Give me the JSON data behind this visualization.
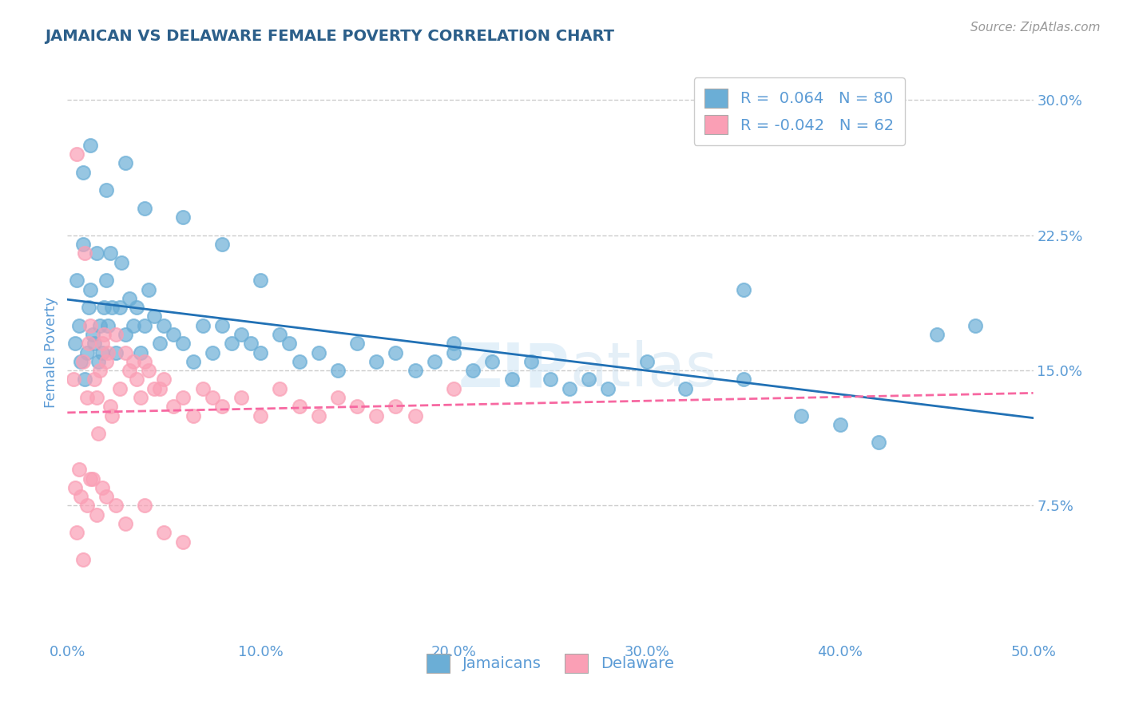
{
  "title": "JAMAICAN VS DELAWARE FEMALE POVERTY CORRELATION CHART",
  "source": "Source: ZipAtlas.com",
  "ylabel": "Female Poverty",
  "xlim": [
    0.0,
    0.5
  ],
  "ylim": [
    0.0,
    0.32
  ],
  "yticks": [
    0.075,
    0.15,
    0.225,
    0.3
  ],
  "ytick_labels": [
    "7.5%",
    "15.0%",
    "22.5%",
    "30.0%"
  ],
  "xticks": [
    0.0,
    0.1,
    0.2,
    0.3,
    0.4,
    0.5
  ],
  "xtick_labels": [
    "0.0%",
    "10.0%",
    "20.0%",
    "30.0%",
    "40.0%",
    "50.0%"
  ],
  "legend_labels": [
    "Jamaicans",
    "Delaware"
  ],
  "r_blue": 0.064,
  "n_blue": 80,
  "r_pink": -0.042,
  "n_pink": 62,
  "blue_color": "#6baed6",
  "pink_color": "#fa9fb5",
  "blue_line_color": "#2171b5",
  "pink_line_color": "#f768a1",
  "title_color": "#2c5f8a",
  "axis_color": "#5b9bd5",
  "background_color": "#ffffff",
  "blue_scatter_x": [
    0.004,
    0.005,
    0.006,
    0.007,
    0.008,
    0.009,
    0.01,
    0.011,
    0.012,
    0.013,
    0.014,
    0.015,
    0.016,
    0.017,
    0.018,
    0.019,
    0.02,
    0.021,
    0.022,
    0.023,
    0.025,
    0.027,
    0.028,
    0.03,
    0.032,
    0.034,
    0.036,
    0.038,
    0.04,
    0.042,
    0.045,
    0.048,
    0.05,
    0.055,
    0.06,
    0.065,
    0.07,
    0.075,
    0.08,
    0.085,
    0.09,
    0.095,
    0.1,
    0.11,
    0.115,
    0.12,
    0.13,
    0.14,
    0.15,
    0.16,
    0.17,
    0.18,
    0.19,
    0.2,
    0.21,
    0.22,
    0.23,
    0.24,
    0.25,
    0.26,
    0.27,
    0.28,
    0.3,
    0.32,
    0.35,
    0.38,
    0.4,
    0.42,
    0.45,
    0.47,
    0.008,
    0.012,
    0.02,
    0.03,
    0.04,
    0.06,
    0.08,
    0.1,
    0.2,
    0.35
  ],
  "blue_scatter_y": [
    0.165,
    0.2,
    0.175,
    0.155,
    0.22,
    0.145,
    0.16,
    0.185,
    0.195,
    0.17,
    0.165,
    0.215,
    0.155,
    0.175,
    0.16,
    0.185,
    0.2,
    0.175,
    0.215,
    0.185,
    0.16,
    0.185,
    0.21,
    0.17,
    0.19,
    0.175,
    0.185,
    0.16,
    0.175,
    0.195,
    0.18,
    0.165,
    0.175,
    0.17,
    0.165,
    0.155,
    0.175,
    0.16,
    0.175,
    0.165,
    0.17,
    0.165,
    0.16,
    0.17,
    0.165,
    0.155,
    0.16,
    0.15,
    0.165,
    0.155,
    0.16,
    0.15,
    0.155,
    0.16,
    0.15,
    0.155,
    0.145,
    0.155,
    0.145,
    0.14,
    0.145,
    0.14,
    0.155,
    0.14,
    0.145,
    0.125,
    0.12,
    0.11,
    0.17,
    0.175,
    0.26,
    0.275,
    0.25,
    0.265,
    0.24,
    0.235,
    0.22,
    0.2,
    0.165,
    0.195
  ],
  "pink_scatter_x": [
    0.003,
    0.004,
    0.005,
    0.006,
    0.007,
    0.008,
    0.009,
    0.01,
    0.011,
    0.012,
    0.013,
    0.014,
    0.015,
    0.016,
    0.017,
    0.018,
    0.019,
    0.02,
    0.021,
    0.022,
    0.023,
    0.025,
    0.027,
    0.03,
    0.032,
    0.034,
    0.036,
    0.038,
    0.04,
    0.042,
    0.045,
    0.048,
    0.05,
    0.055,
    0.06,
    0.065,
    0.07,
    0.075,
    0.08,
    0.09,
    0.1,
    0.11,
    0.12,
    0.13,
    0.14,
    0.15,
    0.16,
    0.17,
    0.18,
    0.2,
    0.005,
    0.008,
    0.01,
    0.012,
    0.015,
    0.018,
    0.02,
    0.025,
    0.03,
    0.04,
    0.05,
    0.06
  ],
  "pink_scatter_y": [
    0.145,
    0.085,
    0.27,
    0.095,
    0.08,
    0.155,
    0.215,
    0.135,
    0.165,
    0.175,
    0.09,
    0.145,
    0.135,
    0.115,
    0.15,
    0.165,
    0.17,
    0.155,
    0.16,
    0.13,
    0.125,
    0.17,
    0.14,
    0.16,
    0.15,
    0.155,
    0.145,
    0.135,
    0.155,
    0.15,
    0.14,
    0.14,
    0.145,
    0.13,
    0.135,
    0.125,
    0.14,
    0.135,
    0.13,
    0.135,
    0.125,
    0.14,
    0.13,
    0.125,
    0.135,
    0.13,
    0.125,
    0.13,
    0.125,
    0.14,
    0.06,
    0.045,
    0.075,
    0.09,
    0.07,
    0.085,
    0.08,
    0.075,
    0.065,
    0.075,
    0.06,
    0.055
  ]
}
